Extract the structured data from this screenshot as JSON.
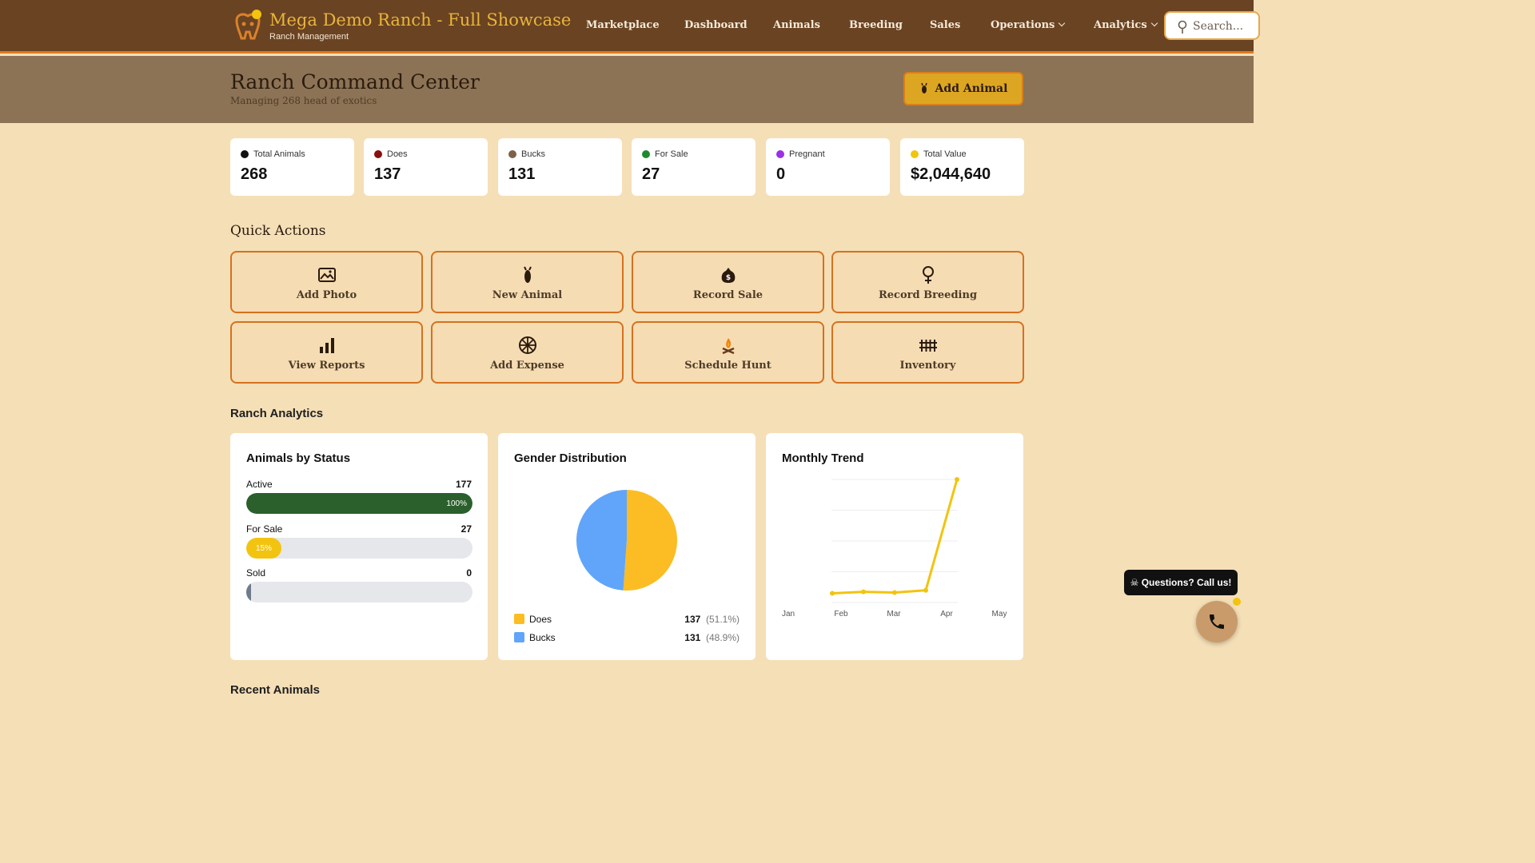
{
  "nav": {
    "brand_title": "Mega Demo Ranch - Full Showcase",
    "brand_subtitle": "Ranch Management",
    "items": [
      {
        "label": "Marketplace"
      },
      {
        "label": "Dashboard"
      },
      {
        "label": "Animals"
      },
      {
        "label": "Breeding"
      },
      {
        "label": "Sales"
      },
      {
        "label": "Operations",
        "dropdown": true
      },
      {
        "label": "Analytics",
        "dropdown": true
      }
    ],
    "search_placeholder": "Search..."
  },
  "header": {
    "title": "Ranch Command Center",
    "subtitle": "Managing 268 head of exotics",
    "add_button": "Add Animal"
  },
  "stats": [
    {
      "label": "Total Animals",
      "value": "268",
      "color": "#111111"
    },
    {
      "label": "Does",
      "value": "137",
      "color": "#8b0d0d"
    },
    {
      "label": "Bucks",
      "value": "131",
      "color": "#7d6149"
    },
    {
      "label": "For Sale",
      "value": "27",
      "color": "#1e8a2e"
    },
    {
      "label": "Pregnant",
      "value": "0",
      "color": "#9b30e6"
    },
    {
      "label": "Total Value",
      "value": "$2,044,640",
      "color": "#f2c40f"
    }
  ],
  "quick_actions": {
    "title": "Quick Actions",
    "items": [
      {
        "label": "Add Photo",
        "icon": "image-icon"
      },
      {
        "label": "New Animal",
        "icon": "deer-icon"
      },
      {
        "label": "Record Sale",
        "icon": "money-bag-icon"
      },
      {
        "label": "Record Breeding",
        "icon": "female-symbol-icon"
      },
      {
        "label": "View Reports",
        "icon": "bar-chart-icon"
      },
      {
        "label": "Add Expense",
        "icon": "wagon-wheel-icon"
      },
      {
        "label": "Schedule Hunt",
        "icon": "campfire-icon"
      },
      {
        "label": "Inventory",
        "icon": "fence-icon"
      }
    ]
  },
  "analytics": {
    "title": "Ranch Analytics",
    "status_panel": {
      "title": "Animals by Status",
      "bars": [
        {
          "label": "Active",
          "count": "177",
          "percent_label": "100%",
          "fraction": 1.0,
          "color": "#2b5f2b"
        },
        {
          "label": "For Sale",
          "count": "27",
          "percent_label": "15%",
          "fraction": 0.15,
          "color": "#f2c40f"
        },
        {
          "label": "Sold",
          "count": "0",
          "percent_label": "",
          "fraction": 0.0,
          "color": "#6e7b8b"
        }
      ]
    },
    "gender_panel": {
      "title": "Gender Distribution",
      "legend": [
        {
          "name": "Does",
          "count": "137",
          "pct": "(51.1%)",
          "color": "#fbbd23"
        },
        {
          "name": "Bucks",
          "count": "131",
          "pct": "(48.9%)",
          "color": "#60a5fa"
        }
      ]
    },
    "trend_panel": {
      "title": "Monthly Trend"
    }
  },
  "chart_data": [
    {
      "type": "bar",
      "title": "Animals by Status",
      "categories": [
        "Active",
        "For Sale",
        "Sold"
      ],
      "values": [
        177,
        27,
        0
      ]
    },
    {
      "type": "pie",
      "title": "Gender Distribution",
      "categories": [
        "Does",
        "Bucks"
      ],
      "values": [
        137,
        131
      ]
    },
    {
      "type": "line",
      "title": "Monthly Trend",
      "x": [
        "Jan",
        "Feb",
        "Mar",
        "Apr",
        "May"
      ],
      "y": [
        10,
        12,
        11,
        14,
        160
      ],
      "grid": true,
      "color": "#f2c40f"
    }
  ],
  "recent": {
    "title": "Recent Animals"
  },
  "floating": {
    "tooltip": "☠ Questions? Call us!",
    "call_icon": "phone-icon"
  }
}
